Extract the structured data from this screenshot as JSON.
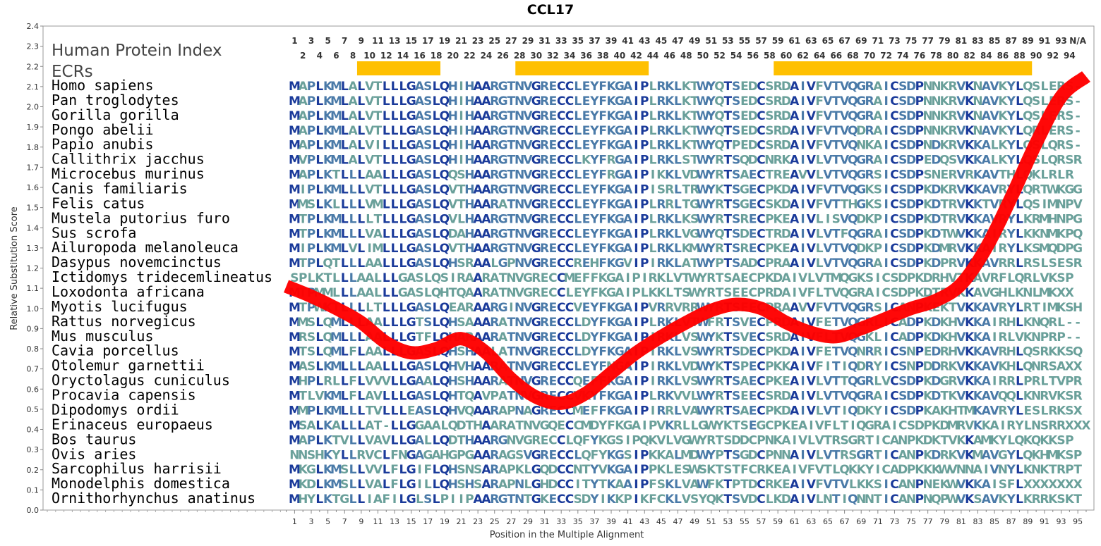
{
  "chart_data": {
    "type": "line",
    "title": "CCL17",
    "xlabel": "Position in the Multiple Alignment",
    "ylabel": "Relative Substitution Score",
    "ylim": [
      0.0,
      2.4
    ],
    "xlim": [
      0,
      96
    ],
    "y_ticks": [
      "0.0",
      "0.1",
      "0.2",
      "0.3",
      "0.4",
      "0.5",
      "0.6",
      "0.7",
      "0.8",
      "0.9",
      "1.0",
      "1.1",
      "1.2",
      "1.3",
      "1.4",
      "1.5",
      "1.6",
      "1.7",
      "1.8",
      "1.9",
      "2.0",
      "2.1",
      "2.2",
      "2.3",
      "2.4"
    ],
    "x_ticks": [
      "1",
      "3",
      "5",
      "7",
      "9",
      "11",
      "13",
      "15",
      "17",
      "19",
      "21",
      "23",
      "25",
      "27",
      "29",
      "31",
      "33",
      "35",
      "37",
      "39",
      "41",
      "43",
      "45",
      "47",
      "49",
      "51",
      "53",
      "55",
      "57",
      "59",
      "61",
      "63",
      "65",
      "67",
      "69",
      "71",
      "73",
      "75",
      "77",
      "79",
      "81",
      "83",
      "85",
      "87",
      "89",
      "91",
      "93",
      "95"
    ],
    "position_row_odd": [
      "1",
      "3",
      "5",
      "7",
      "9",
      "11",
      "13",
      "15",
      "17",
      "19",
      "21",
      "23",
      "25",
      "27",
      "29",
      "31",
      "33",
      "35",
      "37",
      "39",
      "41",
      "43",
      "45",
      "47",
      "49",
      "51",
      "53",
      "55",
      "57",
      "59",
      "61",
      "63",
      "65",
      "67",
      "69",
      "71",
      "73",
      "75",
      "77",
      "79",
      "81",
      "83",
      "85",
      "87",
      "89",
      "91",
      "93",
      "N/A"
    ],
    "position_row_even": [
      "2",
      "4",
      "6",
      "8",
      "10",
      "12",
      "14",
      "16",
      "18",
      "20",
      "22",
      "24",
      "26",
      "28",
      "30",
      "32",
      "34",
      "36",
      "38",
      "40",
      "42",
      "44",
      "46",
      "48",
      "50",
      "52",
      "54",
      "56",
      "58",
      "60",
      "62",
      "64",
      "66",
      "68",
      "70",
      "72",
      "74",
      "76",
      "78",
      "80",
      "82",
      "84",
      "86",
      "88",
      "90",
      "92",
      "94"
    ],
    "series": [
      {
        "color": "#ff0000",
        "x": [
          0,
          3,
          6,
          9,
          12,
          15,
          18,
          21,
          24,
          27,
          30,
          33,
          36,
          39,
          42,
          45,
          48,
          51,
          54,
          57,
          60,
          63,
          66,
          69,
          72,
          75,
          78,
          81,
          84,
          87,
          90,
          93,
          96
        ],
        "y": [
          1.11,
          1.06,
          1.0,
          0.93,
          0.83,
          0.78,
          0.8,
          0.85,
          0.78,
          0.65,
          0.56,
          0.53,
          0.58,
          0.68,
          0.78,
          0.86,
          0.93,
          0.99,
          1.02,
          1.0,
          0.93,
          0.88,
          0.86,
          0.9,
          0.95,
          1.0,
          1.04,
          1.12,
          1.3,
          1.55,
          1.82,
          2.05,
          2.15
        ]
      }
    ],
    "ecr_label": "ECRs",
    "index_label": "Human Protein Index",
    "ecr_color": "#ffc000",
    "ecr_ranges": [
      [
        9,
        18
      ],
      [
        28,
        43
      ],
      [
        59,
        89
      ]
    ],
    "residue_colors": {
      "high": "#1a3a9a",
      "mid": "#4a7aa8",
      "low": "#6aa09a"
    },
    "alignment": [
      {
        "species": "Homo sapiens",
        "seq": "MAPLKMLALVTLLLGASLQHIHAARGTNVGRECCLEYFKGAIPLRKLKTWYQTSEDCSRDAIVFVTVQGRAICSDPNNKRVKNAVKYLQSLERS-"
      },
      {
        "species": "Pan troglodytes",
        "seq": "MAPLKMLALVTLLLGASLQHIHAARGTNVGRECCLEYFKGAIPLRKLKTWYQTSEDCSRDAIVFVTVQGRAICSDPNNKRVKNAVKYLQSLERS-"
      },
      {
        "species": "Gorilla gorilla",
        "seq": "MAPLKMLALVTLLLGASLQHIHAARGTNVGRECCLEYFKGAIPLRKLKTWYQTSEDCSRDAIVFVTVQGRAICSDPNNKRVKNAVKYLQSLERS-"
      },
      {
        "species": "Pongo abelii",
        "seq": "MAPLKMLALVTLLLGASLQHIHAARGTNVGRECCLEYFKGAIPLRKLKTWYQTSEDCSRDAIVFVTVQDRAICSDPNNKRVKNAVKYLQRLERS-"
      },
      {
        "species": "Papio anubis",
        "seq": "MAPLKMLALVILLLGASLQHIHAARGTNVGRECCLEYFKGAIPLRKLKTWYQTPEDCSRDAIVFVTVQNKAICSDPNDKRVKKALKYLQSLQRS-"
      },
      {
        "species": "Callithrix jacchus",
        "seq": "MVPLKMLALVTLLLGASLQHIHAARGTNVGRECCLKYFRGAIPLRKLSTWYRTSQDCNRKAIVLVTVQGRAICSDPEDQSVKKALKYLQSLQRSR"
      },
      {
        "species": "Microcebus murinus",
        "seq": "MAPLKTLLLAALLLGASLQQSHAARGTNVGRECCLEYFRGAIPIKKLVDWYRTSAECTREAVVLVTVQGRSICSDPSNERVRKAVTHLQKLRLR"
      },
      {
        "species": "Canis familiaris",
        "seq": "MIPLKMLLLVTLLLGASLQVTHAARGTNVGRECCLEYFKGAIPISRLTRWYKTSGECPKDAIVFVTVQGKSICSDPKDKRVKKAVRYLQRTWKGG"
      },
      {
        "species": "Felis catus",
        "seq": "MMSLKLLLLVMLLLGASLQVTHAARATNVGRECCLEYFKGAIPLRRLTGWYRTSGECSKDAIVFVTTHGKSICSDPKDTRVKKTVRYLQSIMNPV"
      },
      {
        "species": "Mustela putorius furo",
        "seq": "MTPLKMLLLLTLLLGASLQVLHAARGTNVGRECCLEYFKGAIPLRKLKSWYRTSRECPKEAIVLISVQDKPICSDPKDTRVKKAVRYLKRMHNPG"
      },
      {
        "species": "Sus scrofa",
        "seq": "MTPLKMLLLVALLLGASLQDAHAARGTNVGRECCLEYFKGAIPLRKLVGWYQTSDECTRDAIVLVTFQGRAICSDPKDTWVKKAIRYLKKNMKPQ"
      },
      {
        "species": "Ailuropoda melanoleuca",
        "seq": "MIPLKMLVLIMLLLGASLQVTHAARGTNVGRECCLEYFKGAIPLRKLKMWYRTSRECPKEAIVLVTVQDKPICSDPKDMRVKKAIRYLKSMQDPG"
      },
      {
        "species": "Dasypus novemcinctus",
        "seq": "MTPLQTLLLAALLLGASLQHSRAALGPNVGRECCREHFKGVIPIRKLATWYPTSADCPRAAIVLVTVQGRAICSDPKDPRVKKAVRRLRSLSESR"
      },
      {
        "species": "Ictidomys tridecemlineatus",
        "seq": "SPLKTLLLAALLLGASLQSIRAARATNVGRECCMEFFKGAIPIRKLVTWYRTSAECPKDAIVLVTMQGKSICSDPKDRHVTKAVRFLQRLVKSP"
      },
      {
        "species": "Loxodonta africana",
        "seq": "MTPMMLLLAALLLGASLQHTQAARATNVGRECCLEYFKGAIPLKKLTSWYRTSEECPRDAIVFLTVQGRAICSDPKDTRVKKAVGHLKNLMKXX"
      },
      {
        "species": "Myotis lucifugus",
        "seq": "MTPWKTLLLLTLLLGASLQEARAARGINVGRECCVEYFKGAIPVRRVRRWYRTSEECPRAAVVFVTVQGRSICANPKEKTVKKAVRYLRTIMKSH"
      },
      {
        "species": "Rattus norvegicus",
        "seq": "MMSLQMLLLAALLLGTSLQHSAAARATNVGRECCLDYFKGAIPLRKLVTWFRTSVECPRDAIVFETVQGRLICADPKDKHVKKAIRHLKNQRL--"
      },
      {
        "species": "Mus musculus",
        "seq": "MRSLQMLLLAALLLGTFLQHARAARATNVGRECCLDYFKGAIPIRKLVSWYKTSVECSRDAIVFLTVQGKLICADPKDKHVKKAIRLVKNPRP--"
      },
      {
        "species": "Cavia porcellus",
        "seq": "MTSLQMLFLAALLLGASLQHSHAALATNVGRECCLDYFKGAIPIRKLVSWYRTSDECPKDAIVFETVQNRRICSNPEDRHVKKAVRHLQSRKKSQ"
      },
      {
        "species": "Otolemur garnettii",
        "seq": "MASLKMLLLAALLLGASLQHVHAARATNVGRECCLEYFNGAIPIRKLVDWYKTSPECPKKAIVFITIQDRYICSNPDDRKVKKAVKHLQNRSAXX"
      },
      {
        "species": "Oryctolagus cuniculus",
        "seq": "MHPLRLLFLVVVLLGAALQHSHAARATNVGRECCQEFFKGAIPIRKLVSWYRTSAECPKEAIVLVTTQGRLVCSDPKDGRVKKAIRRLPRLTVPR"
      },
      {
        "species": "Procavia capensis",
        "seq": "MTLVKMLFLAVLLLGASLQHTQAVPATNVGRECCVKYFKGAIPLRKVVLWYRTSEECSRDAIVLVTVQGRAICSDPKDTKVKKAVQQLKNRVKSR"
      },
      {
        "species": "Dipodomys ordii",
        "seq": "MMPLKMLLLTVLLLEASLQHVQAARAPNAGRECCMEFFKGAIPIRRLVAWYRTSAECPKDAIVLVTIQDKYICSDPKAKHTMKAVRYLESLRKSX"
      },
      {
        "species": "Erinaceus europaeus",
        "seq": "MSALKALLLAT-LLGGAALQDTHAARATNVGQECCMDYFKGAIPVKRLLGWYKTSEGCPKEAIVFLTIQGRAICSDPKDMRVKKAIRYLNSRRXXX"
      },
      {
        "species": "Bos taurus",
        "seq": "MAPLKTVLLVAVLLGALLQDTHAARGNVGRECCLQFYKGSIPQKVLVGWYRTSDDCPNKAIVLVTRSGRTICANPKDKTVKKAMKYLQKQKKSP"
      },
      {
        "species": "Ovis aries",
        "seq": "NNSHKYLLRVCLFNGAGAHGPGAARAGSVGRECCLQFYKGSIPKKALMDWYPTSGDCPNNAIVLVTRSGRTICANPKDRKVKMAVGYLQKHMKSP"
      },
      {
        "species": "Sarcophilus harrisii",
        "seq": "MKGLKMSLLVVLFLGIFLQHSNSARAPKLGQDCCNTYVKGAIPPKLESWSKTSTFCRKEAIVFVTLQKKYICADPKKKWVNNAIVNYLKNKTRPT"
      },
      {
        "species": "Monodelphis domestica",
        "seq": "MKDLKMSLLVALFLGILLQHSHSARAPNLGHDCCITYTKAAIPFSKLVAWFKTPTDCRKEAIVFVTVLKKSICANPNEKWVKKAISFLXXXXXXX"
      },
      {
        "species": "Ornithorhynchus anatinus",
        "seq": "MHYLKTGLLIAFILGLSLPIIPAARGTNTGKECCSDYIKKPIKFCKLVSYQKTSVDCLKDAIVLNTIQNNTICANPNQPWVKSAVKYLKRRKSKT"
      }
    ]
  }
}
